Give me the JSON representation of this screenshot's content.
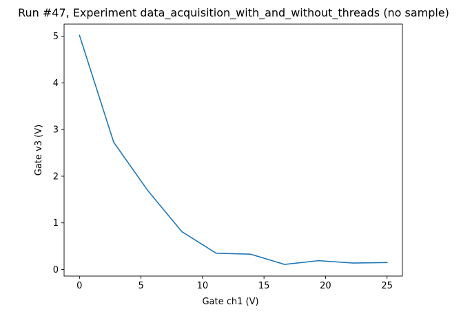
{
  "chart_data": {
    "type": "line",
    "title": "Run #47, Experiment data_acquisition_with_and_without_threads (no sample)",
    "xlabel": "Gate ch1 (V)",
    "ylabel": "Gate v3 (V)",
    "xlim": [
      -1.25,
      26.25
    ],
    "ylim": [
      -0.14,
      5.26
    ],
    "xticks": [
      0,
      5,
      10,
      15,
      20,
      25
    ],
    "xtick_labels": [
      "0",
      "5",
      "10",
      "15",
      "20",
      "25"
    ],
    "yticks": [
      0,
      1,
      2,
      3,
      4,
      5
    ],
    "ytick_labels": [
      "0",
      "1",
      "2",
      "3",
      "4",
      "5"
    ],
    "grid": false,
    "series": [
      {
        "color": "#1f77b4",
        "x": [
          0,
          2.78,
          5.56,
          8.33,
          11.11,
          13.89,
          16.67,
          19.44,
          22.22,
          25.0
        ],
        "y": [
          5.02,
          2.73,
          1.69,
          0.81,
          0.35,
          0.33,
          0.11,
          0.19,
          0.14,
          0.15
        ]
      }
    ]
  }
}
